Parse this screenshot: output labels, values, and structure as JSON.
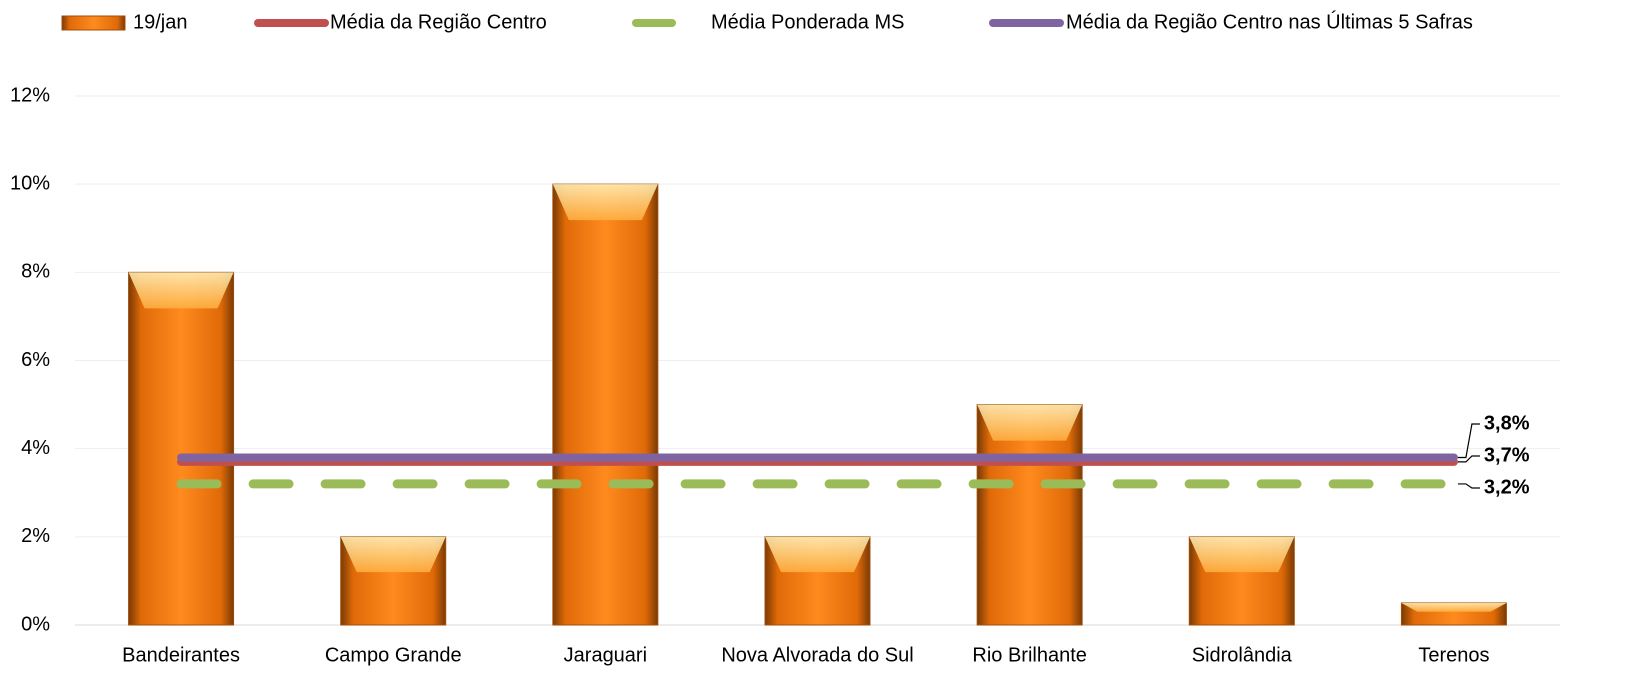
{
  "chart_data": {
    "type": "bar",
    "categories": [
      "Bandeirantes",
      "Campo Grande",
      "Jaraguari",
      "Nova Alvorada do Sul",
      "Rio Brilhante",
      "Sidrolândia",
      "Terenos"
    ],
    "series": [
      {
        "name": "19/jan",
        "type": "bar",
        "color": "#f07a10",
        "values": [
          8,
          2,
          10,
          2,
          5,
          2,
          0.5
        ]
      },
      {
        "name": "Média da Região Centro",
        "type": "line",
        "color": "#c0504d",
        "dashed": false,
        "values": [
          3.7,
          3.7,
          3.7,
          3.7,
          3.7,
          3.7,
          3.7
        ],
        "value_labels": [
          null,
          null,
          null,
          null,
          null,
          null,
          "3,7%"
        ]
      },
      {
        "name": "Média Ponderada MS",
        "type": "line",
        "color": "#9bbb59",
        "dashed": true,
        "values": [
          3.2,
          3.2,
          3.2,
          3.2,
          3.2,
          3.2,
          3.2
        ],
        "value_labels": [
          null,
          null,
          null,
          null,
          null,
          null,
          "3,2%"
        ]
      },
      {
        "name": "Média da Região Centro nas Últimas 5 Safras",
        "type": "line",
        "color": "#8064a2",
        "dashed": false,
        "values": [
          3.8,
          3.8,
          3.8,
          3.8,
          3.8,
          3.8,
          3.8
        ],
        "value_labels": [
          null,
          null,
          null,
          null,
          null,
          null,
          "3,8%"
        ]
      }
    ],
    "ylim": [
      0,
      12
    ],
    "yticks": [
      {
        "value": 0,
        "label": "0%"
      },
      {
        "value": 2,
        "label": "2%"
      },
      {
        "value": 4,
        "label": "4%"
      },
      {
        "value": 6,
        "label": "6%"
      },
      {
        "value": 8,
        "label": "8%"
      },
      {
        "value": 10,
        "label": "10%"
      },
      {
        "value": 12,
        "label": "12%"
      }
    ],
    "grid": true,
    "legend": "top"
  }
}
